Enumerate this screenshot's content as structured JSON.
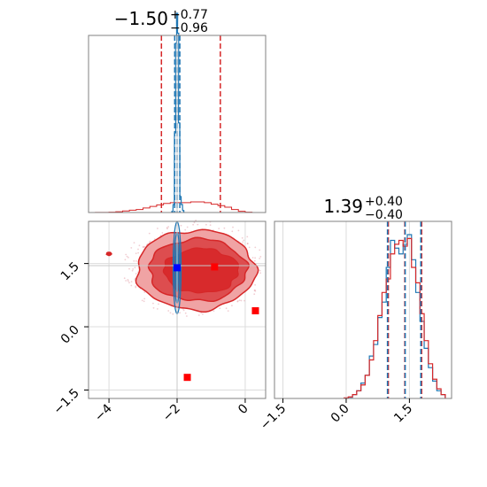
{
  "chart_data": {
    "type": "corner",
    "panels": [
      {
        "id": "marginal-x",
        "type": "histogram",
        "title": {
          "main": "−1.50",
          "sup": "+0.77",
          "sub": "−0.96"
        },
        "xlim": [
          -4.6,
          0.6
        ],
        "red_quantiles": [
          -2.46,
          -1.5,
          -0.73
        ],
        "blue_quantiles": [
          -2.07,
          -2.0,
          -1.92
        ],
        "red_hist": {
          "x": [
            -4.3,
            -4.1,
            -3.9,
            -3.7,
            -3.5,
            -3.3,
            -3.1,
            -2.9,
            -2.7,
            -2.5,
            -2.3,
            -2.1,
            -1.9,
            -1.7,
            -1.5,
            -1.3,
            -1.1,
            -0.9,
            -0.7,
            -0.5,
            -0.3,
            -0.1,
            0.1
          ],
          "values": [
            0.05,
            0.1,
            0.2,
            0.5,
            1,
            1.5,
            2,
            3,
            4,
            5,
            6,
            6.5,
            6.5,
            6.5,
            7,
            7,
            6.5,
            5.5,
            4.5,
            3.5,
            2,
            0.8,
            0.2
          ]
        },
        "blue_hist": {
          "x": [
            -2.14,
            -2.1,
            -2.06,
            -2.03,
            -2.0,
            -1.97,
            -1.94,
            -1.9,
            -1.86,
            -1.82
          ],
          "values": [
            0.5,
            4,
            40,
            85,
            100,
            90,
            45,
            8,
            4,
            1
          ]
        }
      },
      {
        "id": "marginal-y",
        "type": "histogram",
        "title": {
          "main": "1.39",
          "sup": "+0.40",
          "sub": "−0.40"
        },
        "xlim": [
          -1.7,
          2.5
        ],
        "xticks": [
          "−1.5",
          "0.0",
          "1.5"
        ],
        "red_quantiles": [
          1.0,
          1.39,
          1.79
        ],
        "blue_quantiles": [
          0.98,
          1.4,
          1.77
        ],
        "red_hist": {
          "x": [
            0,
            0.1,
            0.2,
            0.3,
            0.4,
            0.5,
            0.6,
            0.7,
            0.8,
            0.9,
            1.0,
            1.1,
            1.2,
            1.3,
            1.4,
            1.5,
            1.6,
            1.7,
            1.8,
            1.9,
            2.0,
            2.1,
            2.2,
            2.3
          ],
          "values": [
            0.3,
            0.8,
            2,
            4,
            7,
            12,
            20,
            30,
            43,
            55,
            62,
            75,
            80,
            82,
            79,
            83,
            68,
            60,
            44,
            30,
            18,
            10,
            5,
            2
          ]
        },
        "blue_hist": {
          "x": [
            0,
            0.1,
            0.2,
            0.3,
            0.4,
            0.5,
            0.6,
            0.7,
            0.8,
            0.9,
            1.0,
            1.1,
            1.2,
            1.3,
            1.4,
            1.5,
            1.6,
            1.7,
            1.8,
            1.9,
            2.0,
            2.1,
            2.2,
            2.3
          ],
          "values": [
            0.2,
            0.6,
            2,
            4,
            8,
            12,
            22,
            28,
            42,
            50,
            68,
            82,
            78,
            75,
            80,
            85,
            72,
            55,
            40,
            26,
            16,
            9,
            4,
            2
          ]
        }
      },
      {
        "id": "joint",
        "type": "contour",
        "xlim": [
          -4.6,
          0.6
        ],
        "ylim": [
          -1.7,
          2.5
        ],
        "xticks": [
          "−4",
          "−2",
          "0"
        ],
        "yticks": [
          "−1.5",
          "0.0",
          "1.5"
        ],
        "truth_x": -2.0,
        "truth_y": 1.45,
        "blue_marker": [
          -2.0,
          1.4
        ],
        "red_markers": [
          [
            -0.9,
            1.42
          ],
          [
            0.3,
            0.38
          ],
          [
            -1.7,
            -1.2
          ]
        ]
      }
    ],
    "colors": {
      "red": "#d62728",
      "red_fill_outer": "#f0a3a4",
      "red_fill_inner": "#dd4d4f",
      "red_core": "#d82a2c",
      "blue": "#1f77b4",
      "blue_marker": "#0000ff",
      "truth_line": "#c8c8c8",
      "axes": "#808080"
    }
  }
}
